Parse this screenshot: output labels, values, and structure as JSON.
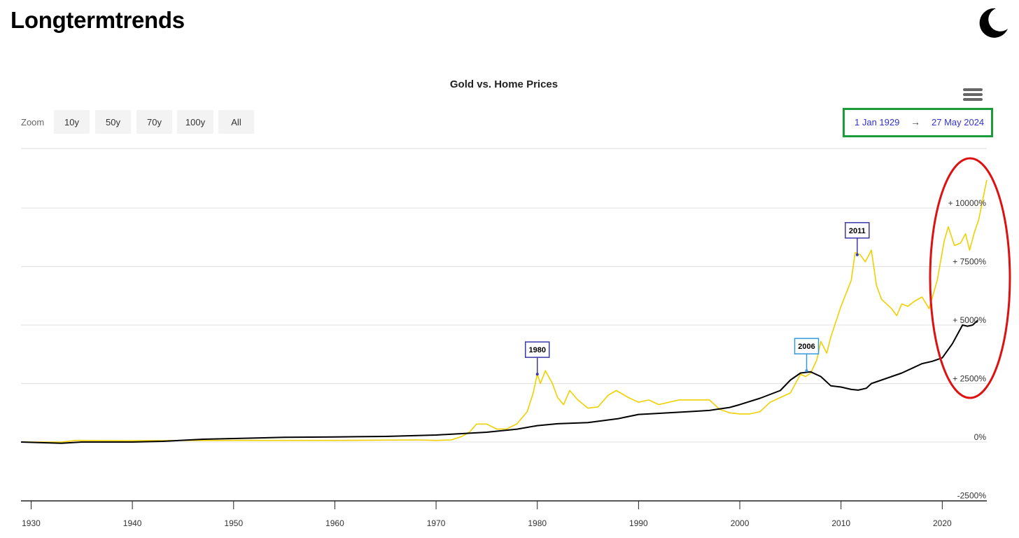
{
  "site": {
    "title": "Longtermtrends"
  },
  "icons": {
    "theme_toggle": "moon-icon",
    "menu": "hamburger-menu-icon"
  },
  "zoom": {
    "label": "Zoom",
    "buttons": [
      "10y",
      "50y",
      "70y",
      "100y",
      "All"
    ]
  },
  "date_range": {
    "from": "1 Jan 1929",
    "arrow": "→",
    "to": "27 May 2024",
    "highlight_color": "#1a9c3a"
  },
  "chart_data": {
    "type": "line",
    "title": "Gold vs. Home Prices",
    "x_range": [
      1929,
      2024.4
    ],
    "y_range": [
      -2500,
      12500
    ],
    "x_ticks": [
      "1930",
      "1940",
      "1950",
      "1960",
      "1970",
      "1980",
      "1990",
      "2000",
      "2010",
      "2020"
    ],
    "x_tick_values": [
      1930,
      1940,
      1950,
      1960,
      1970,
      1980,
      1990,
      2000,
      2010,
      2020
    ],
    "y_ticks": [
      "-2500%",
      "0%",
      "+ 2500%",
      "+ 5000%",
      "+ 7500%",
      "+ 10000%"
    ],
    "y_tick_values": [
      -2500,
      0,
      2500,
      5000,
      7500,
      10000
    ],
    "grid": true,
    "series": [
      {
        "color": "#f0d000",
        "points": [
          [
            1929,
            0
          ],
          [
            1933,
            0
          ],
          [
            1934.5,
            70
          ],
          [
            1940,
            60
          ],
          [
            1950,
            70
          ],
          [
            1960,
            70
          ],
          [
            1968,
            90
          ],
          [
            1970,
            70
          ],
          [
            1971.5,
            90
          ],
          [
            1972.5,
            230
          ],
          [
            1973.3,
            420
          ],
          [
            1974,
            770
          ],
          [
            1975,
            770
          ],
          [
            1976,
            550
          ],
          [
            1977,
            560
          ],
          [
            1978,
            780
          ],
          [
            1979,
            1300
          ],
          [
            1979.6,
            2100
          ],
          [
            1980,
            2900
          ],
          [
            1980.3,
            2500
          ],
          [
            1980.8,
            3050
          ],
          [
            1981.5,
            2500
          ],
          [
            1982,
            1900
          ],
          [
            1982.6,
            1600
          ],
          [
            1983.2,
            2200
          ],
          [
            1984,
            1800
          ],
          [
            1985,
            1450
          ],
          [
            1986,
            1500
          ],
          [
            1987,
            2000
          ],
          [
            1987.8,
            2200
          ],
          [
            1989,
            1900
          ],
          [
            1990,
            1700
          ],
          [
            1991,
            1800
          ],
          [
            1992,
            1600
          ],
          [
            1993,
            1700
          ],
          [
            1994,
            1800
          ],
          [
            1995,
            1800
          ],
          [
            1996,
            1800
          ],
          [
            1997,
            1800
          ],
          [
            1998,
            1400
          ],
          [
            1999,
            1250
          ],
          [
            2000,
            1200
          ],
          [
            2001,
            1200
          ],
          [
            2002,
            1300
          ],
          [
            2003,
            1700
          ],
          [
            2004,
            1900
          ],
          [
            2005,
            2100
          ],
          [
            2006,
            2900
          ],
          [
            2006.5,
            2800
          ],
          [
            2007,
            2950
          ],
          [
            2007.6,
            3500
          ],
          [
            2008,
            4300
          ],
          [
            2008.6,
            3800
          ],
          [
            2009,
            4500
          ],
          [
            2010,
            5800
          ],
          [
            2011,
            6900
          ],
          [
            2011.4,
            8100
          ],
          [
            2011.9,
            8000
          ],
          [
            2012.4,
            7700
          ],
          [
            2013,
            8200
          ],
          [
            2013.5,
            6700
          ],
          [
            2014,
            6100
          ],
          [
            2015,
            5700
          ],
          [
            2015.5,
            5400
          ],
          [
            2016,
            5900
          ],
          [
            2016.6,
            5800
          ],
          [
            2017.2,
            6000
          ],
          [
            2018,
            6200
          ],
          [
            2018.7,
            5700
          ],
          [
            2019.5,
            6900
          ],
          [
            2020.2,
            8600
          ],
          [
            2020.6,
            9200
          ],
          [
            2021.2,
            8400
          ],
          [
            2021.8,
            8500
          ],
          [
            2022.3,
            8900
          ],
          [
            2022.7,
            8200
          ],
          [
            2023.2,
            9000
          ],
          [
            2023.6,
            9500
          ],
          [
            2024.4,
            11200
          ]
        ]
      },
      {
        "color": "#000000",
        "points": [
          [
            1929,
            0
          ],
          [
            1933,
            -50
          ],
          [
            1935,
            0
          ],
          [
            1940,
            0
          ],
          [
            1943,
            30
          ],
          [
            1947,
            120
          ],
          [
            1950,
            150
          ],
          [
            1955,
            200
          ],
          [
            1960,
            220
          ],
          [
            1965,
            240
          ],
          [
            1970,
            300
          ],
          [
            1975,
            420
          ],
          [
            1978,
            550
          ],
          [
            1980,
            700
          ],
          [
            1982,
            780
          ],
          [
            1985,
            830
          ],
          [
            1988,
            1000
          ],
          [
            1990,
            1180
          ],
          [
            1991,
            1200
          ],
          [
            1995,
            1300
          ],
          [
            1997,
            1350
          ],
          [
            1999,
            1480
          ],
          [
            2000,
            1600
          ],
          [
            2002,
            1870
          ],
          [
            2004,
            2200
          ],
          [
            2005,
            2650
          ],
          [
            2006,
            2950
          ],
          [
            2007,
            3000
          ],
          [
            2008,
            2800
          ],
          [
            2009,
            2400
          ],
          [
            2010,
            2350
          ],
          [
            2011,
            2250
          ],
          [
            2011.7,
            2220
          ],
          [
            2012.5,
            2300
          ],
          [
            2013,
            2500
          ],
          [
            2014,
            2650
          ],
          [
            2015,
            2800
          ],
          [
            2016,
            2950
          ],
          [
            2017,
            3150
          ],
          [
            2018,
            3350
          ],
          [
            2019,
            3450
          ],
          [
            2020,
            3600
          ],
          [
            2021,
            4200
          ],
          [
            2022,
            5000
          ],
          [
            2022.5,
            4950
          ],
          [
            2023,
            5000
          ],
          [
            2023.5,
            5200
          ]
        ]
      }
    ],
    "annotations": [
      {
        "label": "1980",
        "x": 1980,
        "y": 2900,
        "color": "#3a3aaa"
      },
      {
        "label": "2006",
        "x": 2006.6,
        "y": 3050,
        "color": "#3399dd"
      },
      {
        "label": "2011",
        "x": 2011.6,
        "y": 8000,
        "color": "#3a3aaa"
      }
    ],
    "highlight_ellipse_color": "#dd1111"
  }
}
